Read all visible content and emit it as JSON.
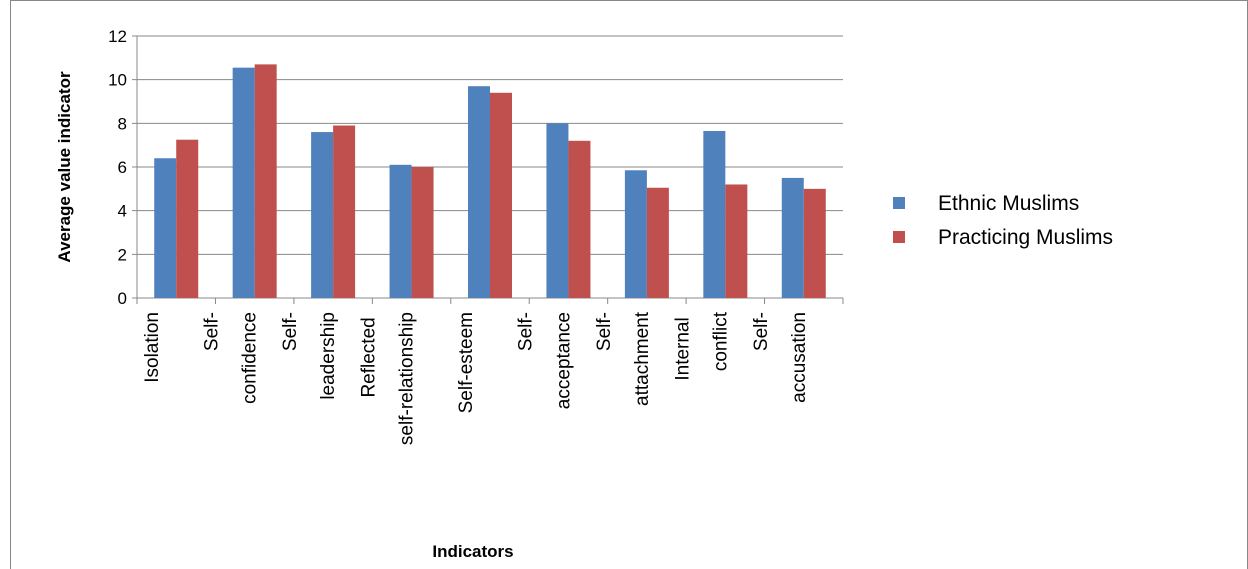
{
  "chart_data": {
    "type": "bar",
    "categories": [
      "Isolation",
      "Self-confidence",
      "Self-leadership",
      "Reflected self-relationship",
      "Self-esteem",
      "Self-acceptance",
      "Self-attachment",
      "Internal conflict",
      "Self-accusation"
    ],
    "series": [
      {
        "name": "Ethnic Muslims",
        "color": "#4f81bd",
        "values": [
          6.4,
          10.55,
          7.6,
          6.1,
          9.7,
          8.0,
          5.85,
          7.65,
          5.5
        ]
      },
      {
        "name": "Practicing Muslims",
        "color": "#c0504d",
        "values": [
          7.25,
          10.7,
          7.9,
          6.0,
          9.4,
          7.2,
          5.05,
          5.2,
          5.0
        ]
      }
    ],
    "ylim": [
      0,
      12
    ],
    "yticks": [
      0,
      2,
      4,
      6,
      8,
      10,
      12
    ],
    "grid": true,
    "y_label": "Average value indicator",
    "x_label": "Indicators",
    "legend": "right"
  }
}
